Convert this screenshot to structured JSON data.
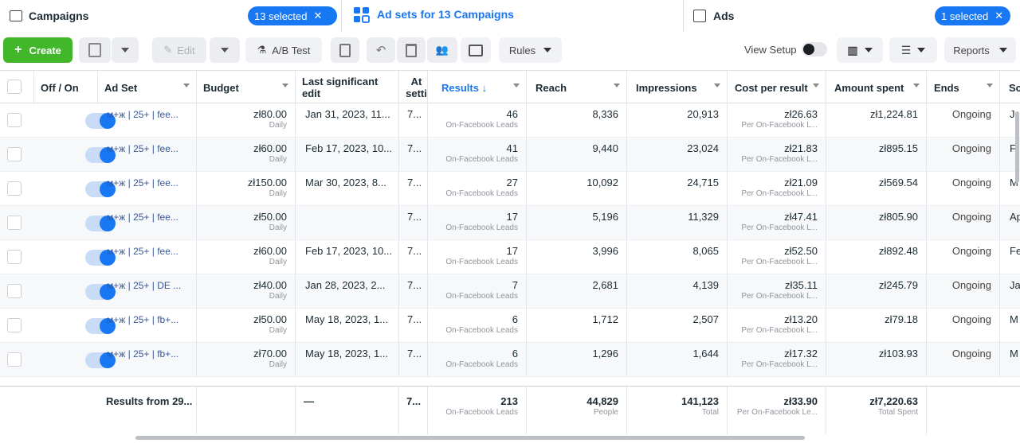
{
  "tabs": {
    "campaigns": {
      "title": "Campaigns",
      "pill": "13 selected"
    },
    "adsets": {
      "title": "Ad sets for 13 Campaigns"
    },
    "ads": {
      "title": "Ads",
      "pill": "1 selected"
    }
  },
  "toolbar": {
    "create": "Create",
    "edit": "Edit",
    "ab_test": "A/B Test",
    "rules": "Rules",
    "view_setup": "View Setup",
    "reports": "Reports"
  },
  "columns": {
    "off_on": "Off / On",
    "ad_set": "Ad Set",
    "budget": "Budget",
    "last_edit_1": "Last significant",
    "last_edit_2": "edit",
    "attr_1": "At",
    "attr_2": "setti",
    "results": "Results ↓",
    "reach": "Reach",
    "impressions": "Impressions",
    "cost": "Cost per result",
    "spent": "Amount spent",
    "ends": "Ends",
    "sched": "Sc"
  },
  "rows": [
    {
      "name": "м+ж | 25+ | fee...",
      "budget": "zł80.00",
      "budget_sub": "Daily",
      "edit": "Jan 31, 2023, 11...",
      "attr": "7...",
      "results": "46",
      "results_sub": "On-Facebook Leads",
      "reach": "8,336",
      "impressions": "20,913",
      "cost": "zł26.63",
      "cost_sub": "Per On-Facebook L...",
      "spent": "zł1,224.81",
      "ends": "Ongoing",
      "sched": "J"
    },
    {
      "name": "м+ж | 25+ | fee...",
      "budget": "zł60.00",
      "budget_sub": "Daily",
      "edit": "Feb 17, 2023, 10...",
      "attr": "7...",
      "results": "41",
      "results_sub": "On-Facebook Leads",
      "reach": "9,440",
      "impressions": "23,024",
      "cost": "zł21.83",
      "cost_sub": "Per On-Facebook L...",
      "spent": "zł895.15",
      "ends": "Ongoing",
      "sched": "F"
    },
    {
      "name": "м+ж | 25+ | fee...",
      "budget": "zł150.00",
      "budget_sub": "Daily",
      "edit": "Mar 30, 2023, 8...",
      "attr": "7...",
      "results": "27",
      "results_sub": "On-Facebook Leads",
      "reach": "10,092",
      "impressions": "24,715",
      "cost": "zł21.09",
      "cost_sub": "Per On-Facebook L...",
      "spent": "zł569.54",
      "ends": "Ongoing",
      "sched": "M"
    },
    {
      "name": "м+ж | 25+ | fee...",
      "budget": "zł50.00",
      "budget_sub": "Daily",
      "edit": "",
      "attr": "7...",
      "results": "17",
      "results_sub": "On-Facebook Leads",
      "reach": "5,196",
      "impressions": "11,329",
      "cost": "zł47.41",
      "cost_sub": "Per On-Facebook L...",
      "spent": "zł805.90",
      "ends": "Ongoing",
      "sched": "Ap"
    },
    {
      "name": "м+ж | 25+ | fee...",
      "budget": "zł60.00",
      "budget_sub": "Daily",
      "edit": "Feb 17, 2023, 10...",
      "attr": "7...",
      "results": "17",
      "results_sub": "On-Facebook Leads",
      "reach": "3,996",
      "impressions": "8,065",
      "cost": "zł52.50",
      "cost_sub": "Per On-Facebook L...",
      "spent": "zł892.48",
      "ends": "Ongoing",
      "sched": "Fe"
    },
    {
      "name": "м+ж | 25+ | DE ...",
      "budget": "zł40.00",
      "budget_sub": "Daily",
      "edit": "Jan 28, 2023, 2...",
      "attr": "7...",
      "results": "7",
      "results_sub": "On-Facebook Leads",
      "reach": "2,681",
      "impressions": "4,139",
      "cost": "zł35.11",
      "cost_sub": "Per On-Facebook L...",
      "spent": "zł245.79",
      "ends": "Ongoing",
      "sched": "Ja"
    },
    {
      "name": "м+ж | 25+ | fb+...",
      "budget": "zł50.00",
      "budget_sub": "Daily",
      "edit": "May 18, 2023, 1...",
      "attr": "7...",
      "results": "6",
      "results_sub": "On-Facebook Leads",
      "reach": "1,712",
      "impressions": "2,507",
      "cost": "zł13.20",
      "cost_sub": "Per On-Facebook L...",
      "spent": "zł79.18",
      "ends": "Ongoing",
      "sched": "M"
    },
    {
      "name": "м+ж | 25+ | fb+...",
      "budget": "zł70.00",
      "budget_sub": "Daily",
      "edit": "May 18, 2023, 1...",
      "attr": "7...",
      "results": "6",
      "results_sub": "On-Facebook Leads",
      "reach": "1,296",
      "impressions": "1,644",
      "cost": "zł17.32",
      "cost_sub": "Per On-Facebook L...",
      "spent": "zł103.93",
      "ends": "Ongoing",
      "sched": "M"
    }
  ],
  "footer": {
    "label": "Results from 29...",
    "edit": "—",
    "attr": "7...",
    "results": "213",
    "results_sub": "On-Facebook Leads",
    "reach": "44,829",
    "reach_sub": "People",
    "impressions": "141,123",
    "impressions_sub": "Total",
    "cost": "zł33.90",
    "cost_sub": "Per On-Facebook Le...",
    "spent": "zł7,220.63",
    "spent_sub": "Total Spent"
  }
}
